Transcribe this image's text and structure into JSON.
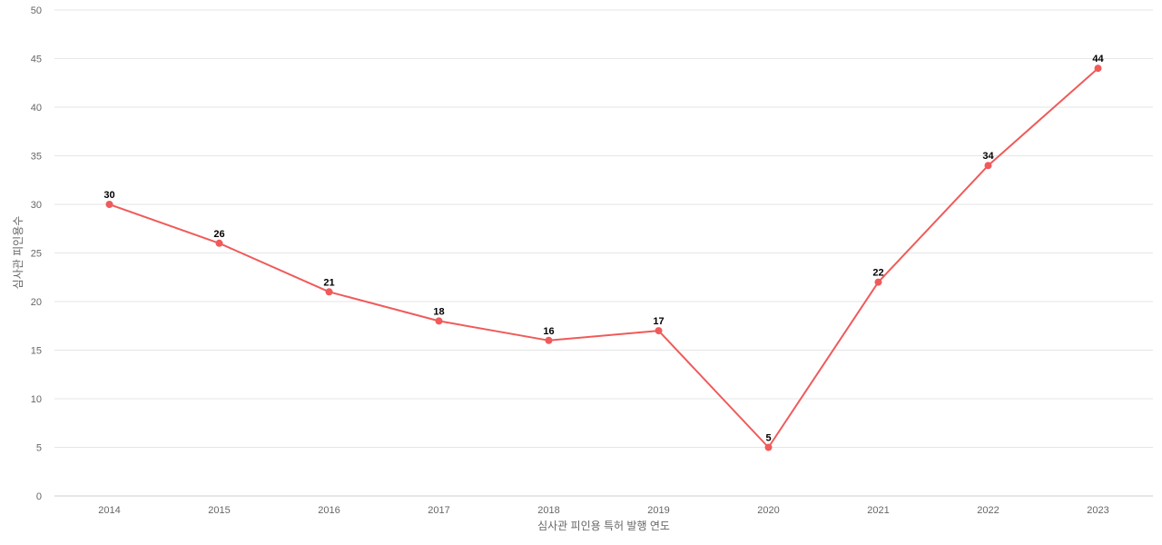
{
  "chart_data": {
    "type": "line",
    "title": "",
    "xlabel": "심사관 피인용 특허 발행 연도",
    "ylabel": "심사관 피인용수",
    "categories": [
      "2014",
      "2015",
      "2016",
      "2017",
      "2018",
      "2019",
      "2020",
      "2021",
      "2022",
      "2023"
    ],
    "series": [
      {
        "values": [
          30,
          26,
          21,
          18,
          16,
          17,
          5,
          22,
          34,
          44
        ],
        "color": "#f05a5a"
      }
    ],
    "ylim": [
      0,
      50
    ],
    "yticks": [
      "0",
      "5",
      "10",
      "15",
      "20",
      "25",
      "30",
      "35",
      "40",
      "45",
      "50"
    ],
    "grid": true,
    "legend": "none",
    "data_labels": true
  }
}
